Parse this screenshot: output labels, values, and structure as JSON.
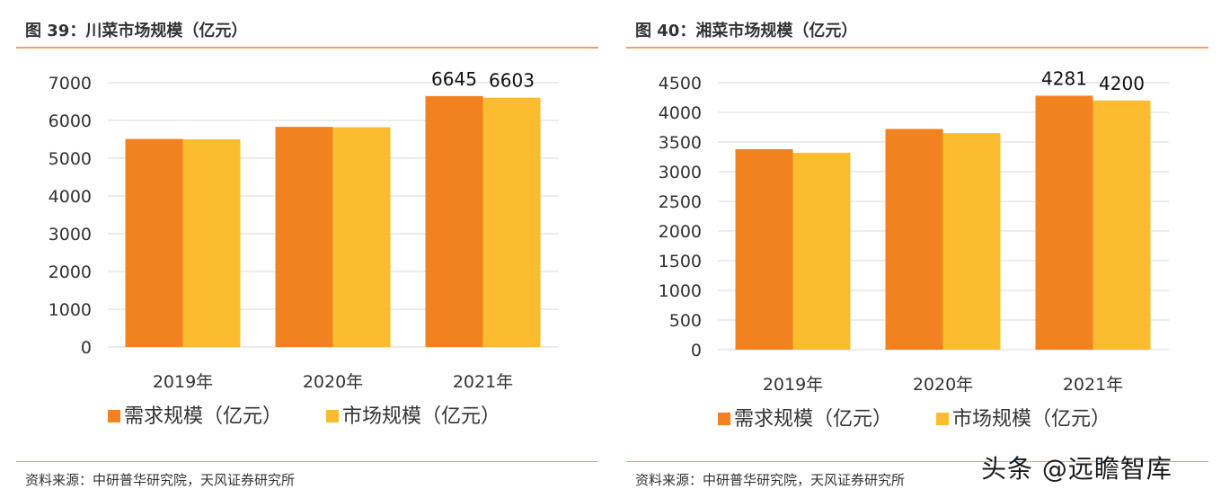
{
  "colors": {
    "demand": "#f28220",
    "market": "#fbbd2f",
    "grid": "#d9d9d9",
    "rule": "#f0a05a"
  },
  "legend": {
    "demand": "需求规模（亿元）",
    "market": "市场规模（亿元）"
  },
  "source_text": "资料来源：中研普华研究院，天风证券研究所",
  "watermark": "头条 @远瞻智库",
  "charts": [
    {
      "title": "图 39：川菜市场规模（亿元）"
    },
    {
      "title": "图 40：湘菜市场规模（亿元）"
    }
  ],
  "chart_data": [
    {
      "type": "bar",
      "title": "图 39：川菜市场规模（亿元）",
      "categories": [
        "2019年",
        "2020年",
        "2021年"
      ],
      "series": [
        {
          "name": "需求规模（亿元）",
          "values": [
            5510,
            5830,
            6645
          ]
        },
        {
          "name": "市场规模（亿元）",
          "values": [
            5500,
            5820,
            6603
          ]
        }
      ],
      "data_labels": [
        {
          "series": 0,
          "index": 2,
          "text": "6645"
        },
        {
          "series": 1,
          "index": 2,
          "text": "6603"
        }
      ],
      "ylim": [
        0,
        7000
      ],
      "yticks": [
        0,
        1000,
        2000,
        3000,
        4000,
        5000,
        6000,
        7000
      ],
      "grid": true,
      "legend_position": "bottom"
    },
    {
      "type": "bar",
      "title": "图 40：湘菜市场规模（亿元）",
      "categories": [
        "2019年",
        "2020年",
        "2021年"
      ],
      "series": [
        {
          "name": "需求规模（亿元）",
          "values": [
            3380,
            3720,
            4281
          ]
        },
        {
          "name": "市场规模（亿元）",
          "values": [
            3320,
            3650,
            4200
          ]
        }
      ],
      "data_labels": [
        {
          "series": 0,
          "index": 2,
          "text": "4281"
        },
        {
          "series": 1,
          "index": 2,
          "text": "4200"
        }
      ],
      "ylim": [
        0,
        4500
      ],
      "yticks": [
        0,
        500,
        1000,
        1500,
        2000,
        2500,
        3000,
        3500,
        4000,
        4500
      ],
      "grid": true,
      "legend_position": "bottom"
    }
  ]
}
